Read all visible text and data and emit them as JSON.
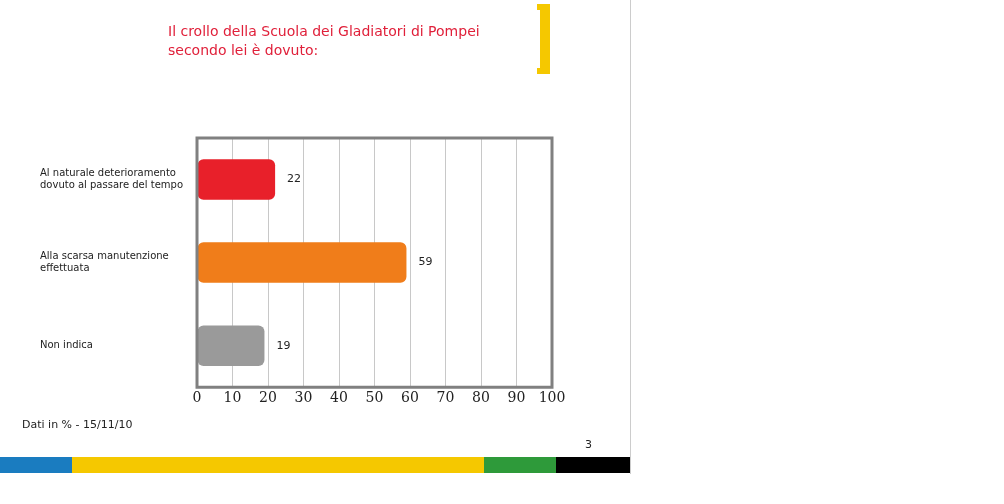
{
  "chart_data": {
    "type": "bar",
    "orientation": "horizontal",
    "title": "Il crollo della Scuola dei Gladiatori di Pompei secondo lei è dovuto:",
    "categories": [
      "Al naturale deterioramento dovuto al passare del tempo",
      "Alla scarsa manutenzione effettuata",
      "Non indica"
    ],
    "values": [
      22,
      59,
      19
    ],
    "colors": [
      "#e8202a",
      "#f07d1a",
      "#9a9a9a"
    ],
    "xlim": [
      0,
      100
    ],
    "xticks": [
      0,
      10,
      20,
      30,
      40,
      50,
      60,
      70,
      80,
      90,
      100
    ],
    "grid": "x",
    "legend": false,
    "data_labels": true,
    "annotations": [
      "Dati in % - 15/11/10",
      "3"
    ]
  }
}
